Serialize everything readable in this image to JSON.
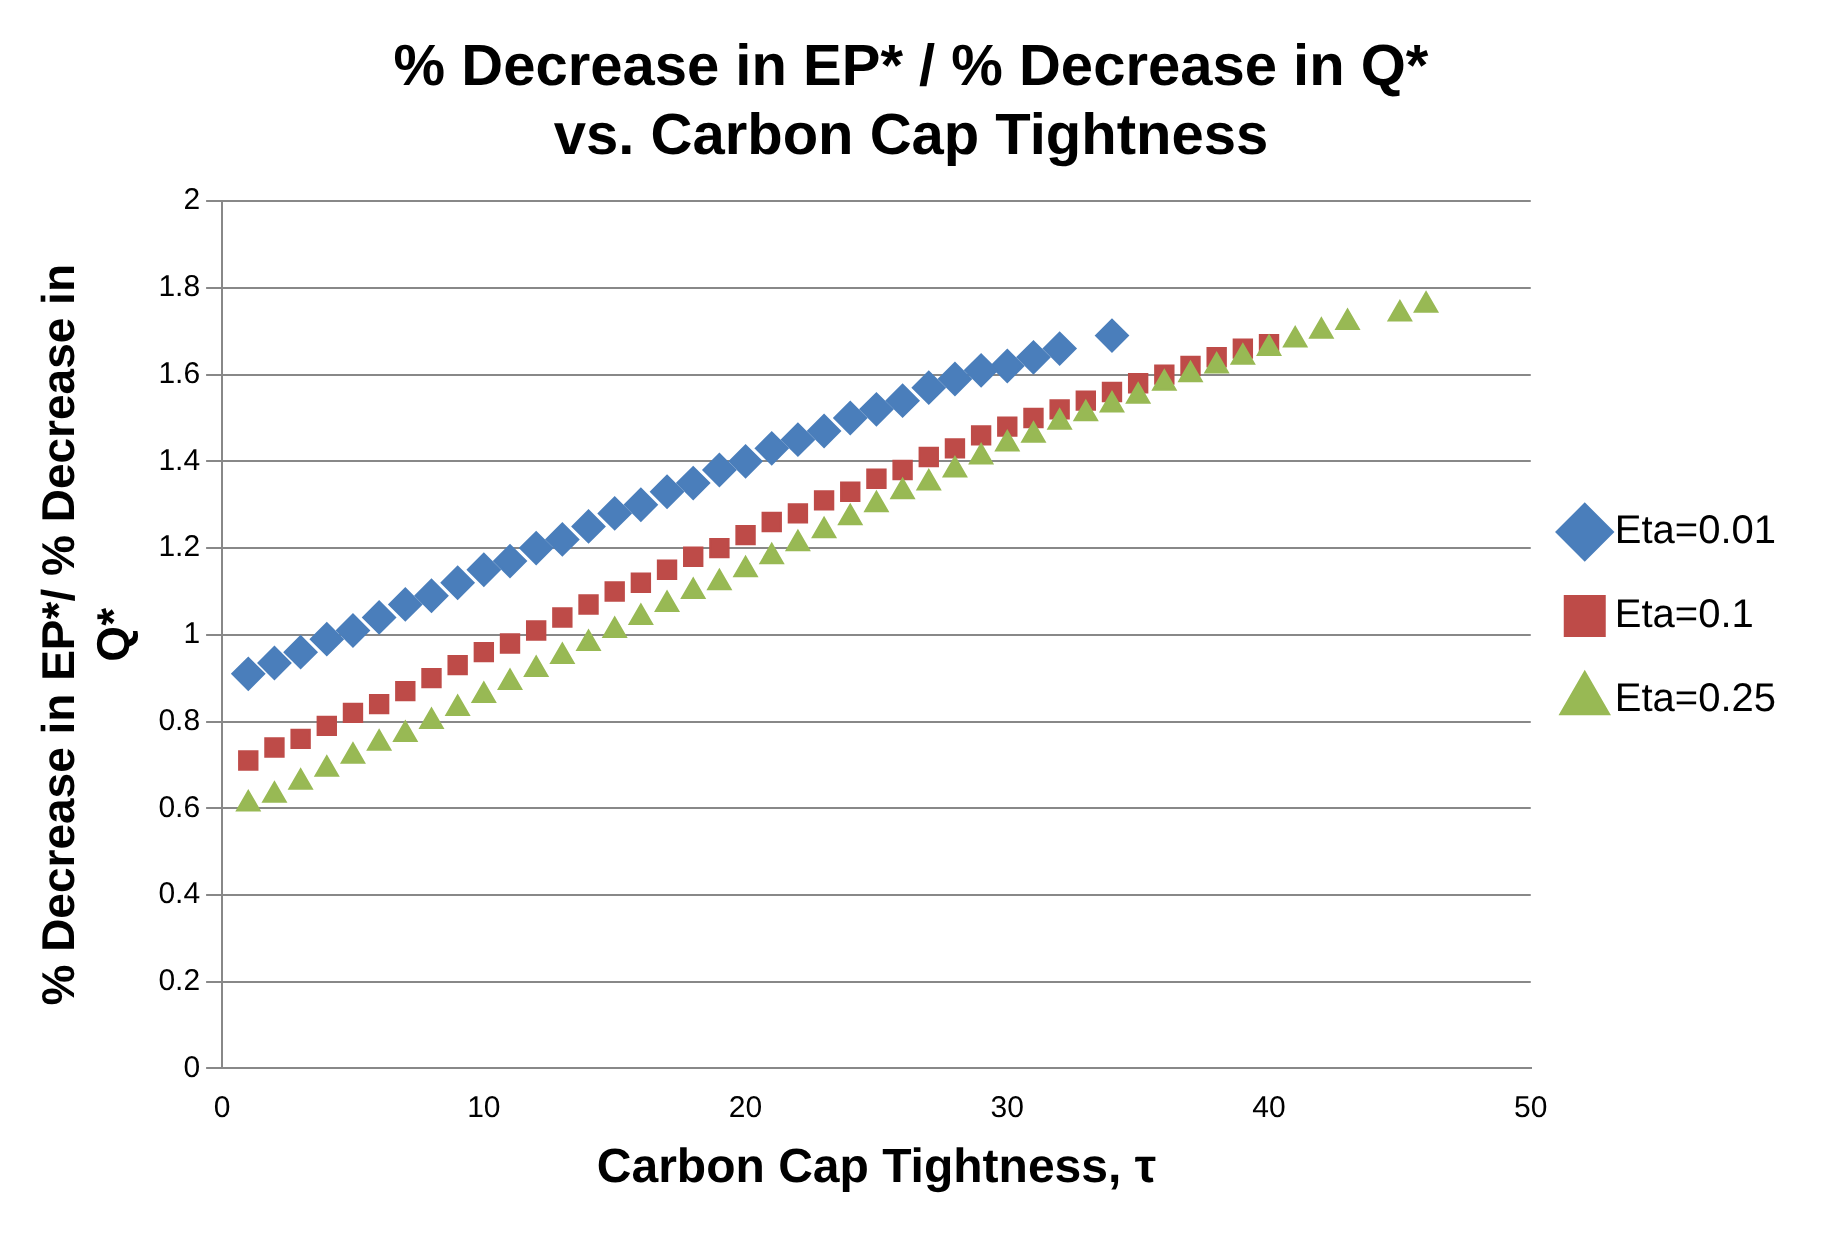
{
  "chart_data": {
    "type": "scatter",
    "title": "% Decrease in EP* / % Decrease in Q* vs. Carbon Cap Tightness",
    "xlabel": "Carbon Cap Tightness, τ",
    "ylabel": "% Decrease in EP*/ % Decrease in Q*",
    "xlim": [
      0,
      50
    ],
    "xticks": [
      0,
      10,
      20,
      30,
      40,
      50
    ],
    "ylim": [
      0,
      2
    ],
    "yticks": [
      0,
      0.2,
      0.4,
      0.6,
      0.8,
      1,
      1.2,
      1.4,
      1.6,
      1.8,
      2
    ],
    "grid": "y",
    "legend": "right",
    "series": [
      {
        "name": "Eta=0.01",
        "color": "#4a7ebb",
        "marker": "diamond",
        "x": [
          1,
          2,
          3,
          4,
          5,
          6,
          7,
          8,
          9,
          10,
          11,
          12,
          13,
          14,
          15,
          16,
          17,
          18,
          19,
          20,
          21,
          22,
          23,
          24,
          25,
          26,
          27,
          28,
          29,
          30,
          31,
          32,
          34
        ],
        "values": [
          0.91,
          0.935,
          0.96,
          0.99,
          1.01,
          1.04,
          1.07,
          1.09,
          1.12,
          1.15,
          1.17,
          1.2,
          1.22,
          1.25,
          1.28,
          1.3,
          1.33,
          1.35,
          1.38,
          1.4,
          1.43,
          1.45,
          1.47,
          1.5,
          1.52,
          1.54,
          1.57,
          1.59,
          1.61,
          1.62,
          1.64,
          1.66,
          1.69
        ]
      },
      {
        "name": "Eta=0.1",
        "color": "#be4b48",
        "marker": "square",
        "x": [
          1,
          2,
          3,
          4,
          5,
          6,
          7,
          8,
          9,
          10,
          11,
          12,
          13,
          14,
          15,
          16,
          17,
          18,
          19,
          20,
          21,
          22,
          23,
          24,
          25,
          26,
          27,
          28,
          29,
          30,
          31,
          32,
          33,
          34,
          35,
          36,
          37,
          38,
          39,
          40
        ],
        "values": [
          0.71,
          0.74,
          0.76,
          0.79,
          0.82,
          0.84,
          0.87,
          0.9,
          0.93,
          0.96,
          0.98,
          1.01,
          1.04,
          1.07,
          1.1,
          1.12,
          1.15,
          1.18,
          1.2,
          1.23,
          1.26,
          1.28,
          1.31,
          1.33,
          1.36,
          1.38,
          1.41,
          1.43,
          1.46,
          1.48,
          1.5,
          1.52,
          1.54,
          1.56,
          1.58,
          1.6,
          1.62,
          1.64,
          1.66,
          1.67
        ]
      },
      {
        "name": "Eta=0.25",
        "color": "#98b954",
        "marker": "triangle",
        "x": [
          1,
          2,
          3,
          4,
          5,
          6,
          7,
          8,
          9,
          10,
          11,
          12,
          13,
          14,
          15,
          16,
          17,
          18,
          19,
          20,
          21,
          22,
          23,
          24,
          25,
          26,
          27,
          28,
          29,
          30,
          31,
          32,
          33,
          34,
          35,
          36,
          37,
          38,
          39,
          40,
          41,
          42,
          43,
          45,
          46
        ],
        "values": [
          0.61,
          0.63,
          0.66,
          0.69,
          0.72,
          0.75,
          0.77,
          0.8,
          0.83,
          0.86,
          0.89,
          0.92,
          0.95,
          0.98,
          1.01,
          1.04,
          1.07,
          1.1,
          1.12,
          1.15,
          1.18,
          1.21,
          1.24,
          1.27,
          1.3,
          1.33,
          1.35,
          1.38,
          1.41,
          1.44,
          1.46,
          1.49,
          1.51,
          1.53,
          1.55,
          1.58,
          1.6,
          1.62,
          1.64,
          1.66,
          1.68,
          1.7,
          1.72,
          1.74,
          1.76
        ]
      }
    ]
  }
}
